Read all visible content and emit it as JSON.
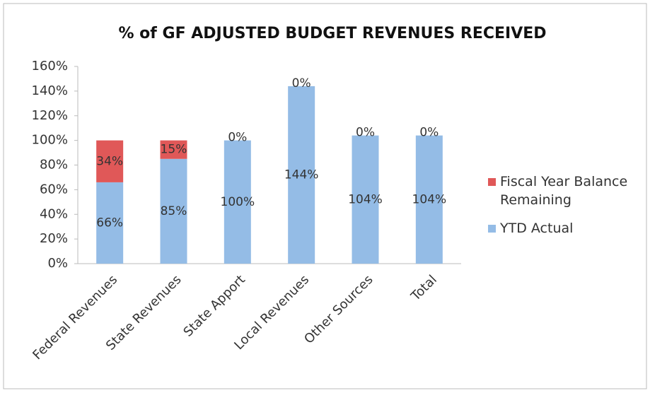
{
  "chart_data": {
    "type": "stacked_bar",
    "title": "% of GF ADJUSTED BUDGET REVENUES RECEIVED",
    "categories": [
      "Federal Revenues",
      "State Revenues",
      "State Apport",
      "Local Revenues",
      "Other Sources",
      "Total"
    ],
    "series": [
      {
        "name": "YTD Actual",
        "color": "#94bce6",
        "values": [
          66,
          85,
          100,
          144,
          104,
          104
        ],
        "value_labels": [
          "66%",
          "85%",
          "100%",
          "144%",
          "104%",
          "104%"
        ]
      },
      {
        "name": "Fiscal Year Balance Remaining",
        "color": "#e05858",
        "values": [
          34,
          15,
          0,
          0,
          0,
          0
        ],
        "value_labels": [
          "34%",
          "15%",
          "0%",
          "0%",
          "0%",
          "0%"
        ]
      }
    ],
    "ylim": [
      0,
      160
    ],
    "yticks": [
      {
        "value": 0,
        "label": "0%"
      },
      {
        "value": 20,
        "label": "20%"
      },
      {
        "value": 40,
        "label": "40%"
      },
      {
        "value": 60,
        "label": "60%"
      },
      {
        "value": 80,
        "label": "80%"
      },
      {
        "value": 100,
        "label": "100%"
      },
      {
        "value": 120,
        "label": "120%"
      },
      {
        "value": 140,
        "label": "140%"
      },
      {
        "value": 160,
        "label": "160%"
      }
    ],
    "legend": "right"
  }
}
